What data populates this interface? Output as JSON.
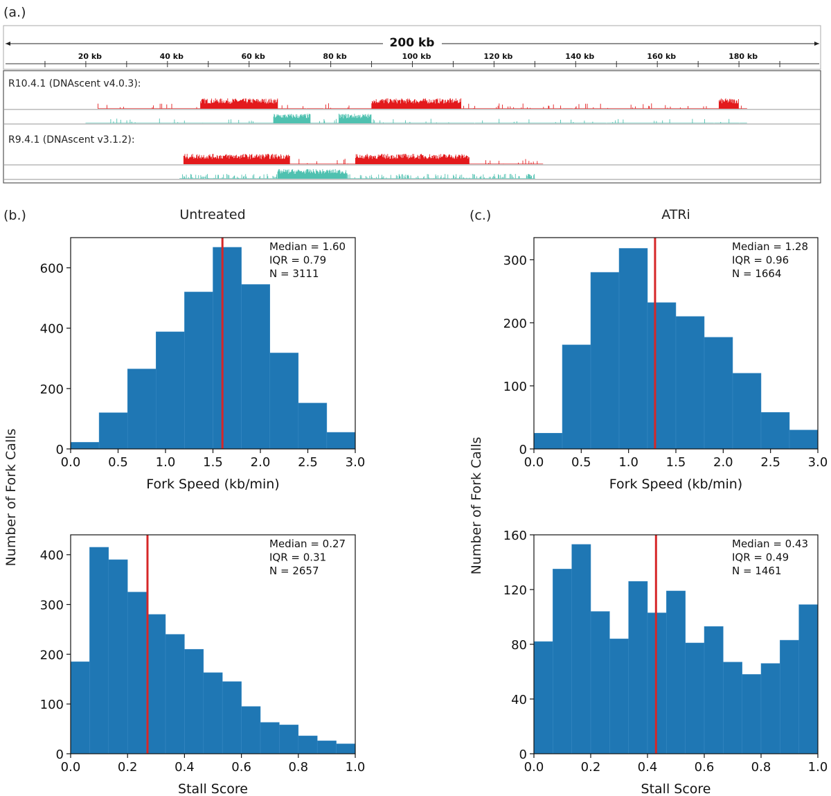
{
  "panels": {
    "a": {
      "label": "(a.)"
    },
    "b": {
      "label": "(b.)",
      "title": "Untreated"
    },
    "c": {
      "label": "(c.)",
      "title": "ATRi"
    }
  },
  "colors": {
    "bar": "#1f77b4",
    "median": "#d62728",
    "brdu_track": "#e31a1c",
    "edu_track": "#4fc1b0",
    "frame": "#555555"
  },
  "chart_data": [
    {
      "id": "genome-browser",
      "type": "area",
      "title": "200 kb",
      "span_kb": 200,
      "ticks": [
        {
          "kb": 20,
          "label": "20 kb"
        },
        {
          "kb": 40,
          "label": "40 kb"
        },
        {
          "kb": 60,
          "label": "60 kb"
        },
        {
          "kb": 80,
          "label": "80 kb"
        },
        {
          "kb": 100,
          "label": "100 kb"
        },
        {
          "kb": 120,
          "label": "120 kb"
        },
        {
          "kb": 140,
          "label": "140 kb"
        },
        {
          "kb": 160,
          "label": "160 kb"
        },
        {
          "kb": 180,
          "label": "180 kb"
        }
      ],
      "tracks": [
        {
          "label": "R10.4.1 (DNAscent v4.0.3):",
          "brdu_high": [
            [
              48,
              67
            ],
            [
              90,
              112
            ],
            [
              175,
              180
            ]
          ],
          "brdu_span": [
            23,
            182
          ],
          "edu_high": [
            [
              66,
              75
            ],
            [
              82,
              90
            ]
          ],
          "edu_span": [
            20,
            182
          ]
        },
        {
          "label": "R9.4.1 (DNAscent v3.1.2):",
          "brdu_high": [
            [
              44,
              70
            ],
            [
              86,
              114
            ]
          ],
          "brdu_span": [
            44,
            132
          ],
          "edu_high": [
            [
              67,
              84
            ]
          ],
          "edu_span": [
            43,
            130
          ]
        }
      ]
    },
    {
      "id": "b-speed",
      "type": "bar",
      "xlabel": "Fork Speed (kb/min)",
      "ylabel": "Number of Fork Calls",
      "xlim": [
        0,
        3.0
      ],
      "ylim": [
        0,
        700
      ],
      "bin_edges": [
        0,
        0.3,
        0.6,
        0.9,
        1.2,
        1.5,
        1.8,
        2.1,
        2.4,
        2.7,
        3.0
      ],
      "values": [
        22,
        120,
        265,
        388,
        520,
        668,
        545,
        318,
        152,
        55
      ],
      "xticks": [
        0.0,
        0.5,
        1.0,
        1.5,
        2.0,
        2.5,
        3.0
      ],
      "xtick_labels": [
        "0.0",
        "0.5",
        "1.0",
        "1.5",
        "2.0",
        "2.5",
        "3.0"
      ],
      "yticks": [
        0,
        200,
        400,
        600
      ],
      "ytick_labels": [
        "0",
        "200",
        "400",
        "600"
      ],
      "median_line": 1.6,
      "stats": [
        "Median = 1.60",
        "IQR = 0.79",
        "N = 3111"
      ]
    },
    {
      "id": "b-stall",
      "type": "bar",
      "xlabel": "Stall Score",
      "ylabel": "Number of Fork Calls",
      "xlim": [
        0,
        1.0
      ],
      "ylim": [
        0,
        440
      ],
      "bin_edges": [
        0,
        0.0667,
        0.1333,
        0.2,
        0.2667,
        0.3333,
        0.4,
        0.4667,
        0.5333,
        0.6,
        0.6667,
        0.7333,
        0.8,
        0.8667,
        0.9333,
        1.0
      ],
      "values": [
        185,
        415,
        390,
        325,
        280,
        240,
        210,
        163,
        145,
        95,
        63,
        58,
        36,
        26,
        20
      ],
      "xticks": [
        0.0,
        0.2,
        0.4,
        0.6,
        0.8,
        1.0
      ],
      "xtick_labels": [
        "0.0",
        "0.2",
        "0.4",
        "0.6",
        "0.8",
        "1.0"
      ],
      "yticks": [
        0,
        100,
        200,
        300,
        400
      ],
      "ytick_labels": [
        "0",
        "100",
        "200",
        "300",
        "400"
      ],
      "median_line": 0.27,
      "stats": [
        "Median = 0.27",
        "IQR = 0.31",
        "N = 2657"
      ]
    },
    {
      "id": "c-speed",
      "type": "bar",
      "xlabel": "Fork Speed (kb/min)",
      "ylabel": "Number of Fork Calls",
      "xlim": [
        0,
        3.0
      ],
      "ylim": [
        0,
        335
      ],
      "bin_edges": [
        0,
        0.3,
        0.6,
        0.9,
        1.2,
        1.5,
        1.8,
        2.1,
        2.4,
        2.7,
        3.0
      ],
      "values": [
        25,
        165,
        280,
        318,
        232,
        210,
        177,
        120,
        58,
        30
      ],
      "xticks": [
        0.0,
        0.5,
        1.0,
        1.5,
        2.0,
        2.5,
        3.0
      ],
      "xtick_labels": [
        "0.0",
        "0.5",
        "1.0",
        "1.5",
        "2.0",
        "2.5",
        "3.0"
      ],
      "yticks": [
        0,
        100,
        200,
        300
      ],
      "ytick_labels": [
        "0",
        "100",
        "200",
        "300"
      ],
      "median_line": 1.28,
      "stats": [
        "Median = 1.28",
        "IQR = 0.96",
        "N = 1664"
      ]
    },
    {
      "id": "c-stall",
      "type": "bar",
      "xlabel": "Stall Score",
      "ylabel": "Number of Fork Calls",
      "xlim": [
        0,
        1.0
      ],
      "ylim": [
        0,
        160
      ],
      "bin_edges": [
        0,
        0.0667,
        0.1333,
        0.2,
        0.2667,
        0.3333,
        0.4,
        0.4667,
        0.5333,
        0.6,
        0.6667,
        0.7333,
        0.8,
        0.8667,
        0.9333,
        1.0
      ],
      "values": [
        82,
        135,
        153,
        104,
        84,
        126,
        103,
        119,
        81,
        93,
        67,
        58,
        66,
        83,
        109
      ],
      "xticks": [
        0.0,
        0.2,
        0.4,
        0.6,
        0.8,
        1.0
      ],
      "xtick_labels": [
        "0.0",
        "0.2",
        "0.4",
        "0.6",
        "0.8",
        "1.0"
      ],
      "yticks": [
        0,
        40,
        80,
        120,
        160
      ],
      "ytick_labels": [
        "0",
        "40",
        "80",
        "120",
        "160"
      ],
      "median_line": 0.43,
      "stats": [
        "Median = 0.43",
        "IQR = 0.49",
        "N = 1461"
      ]
    }
  ]
}
